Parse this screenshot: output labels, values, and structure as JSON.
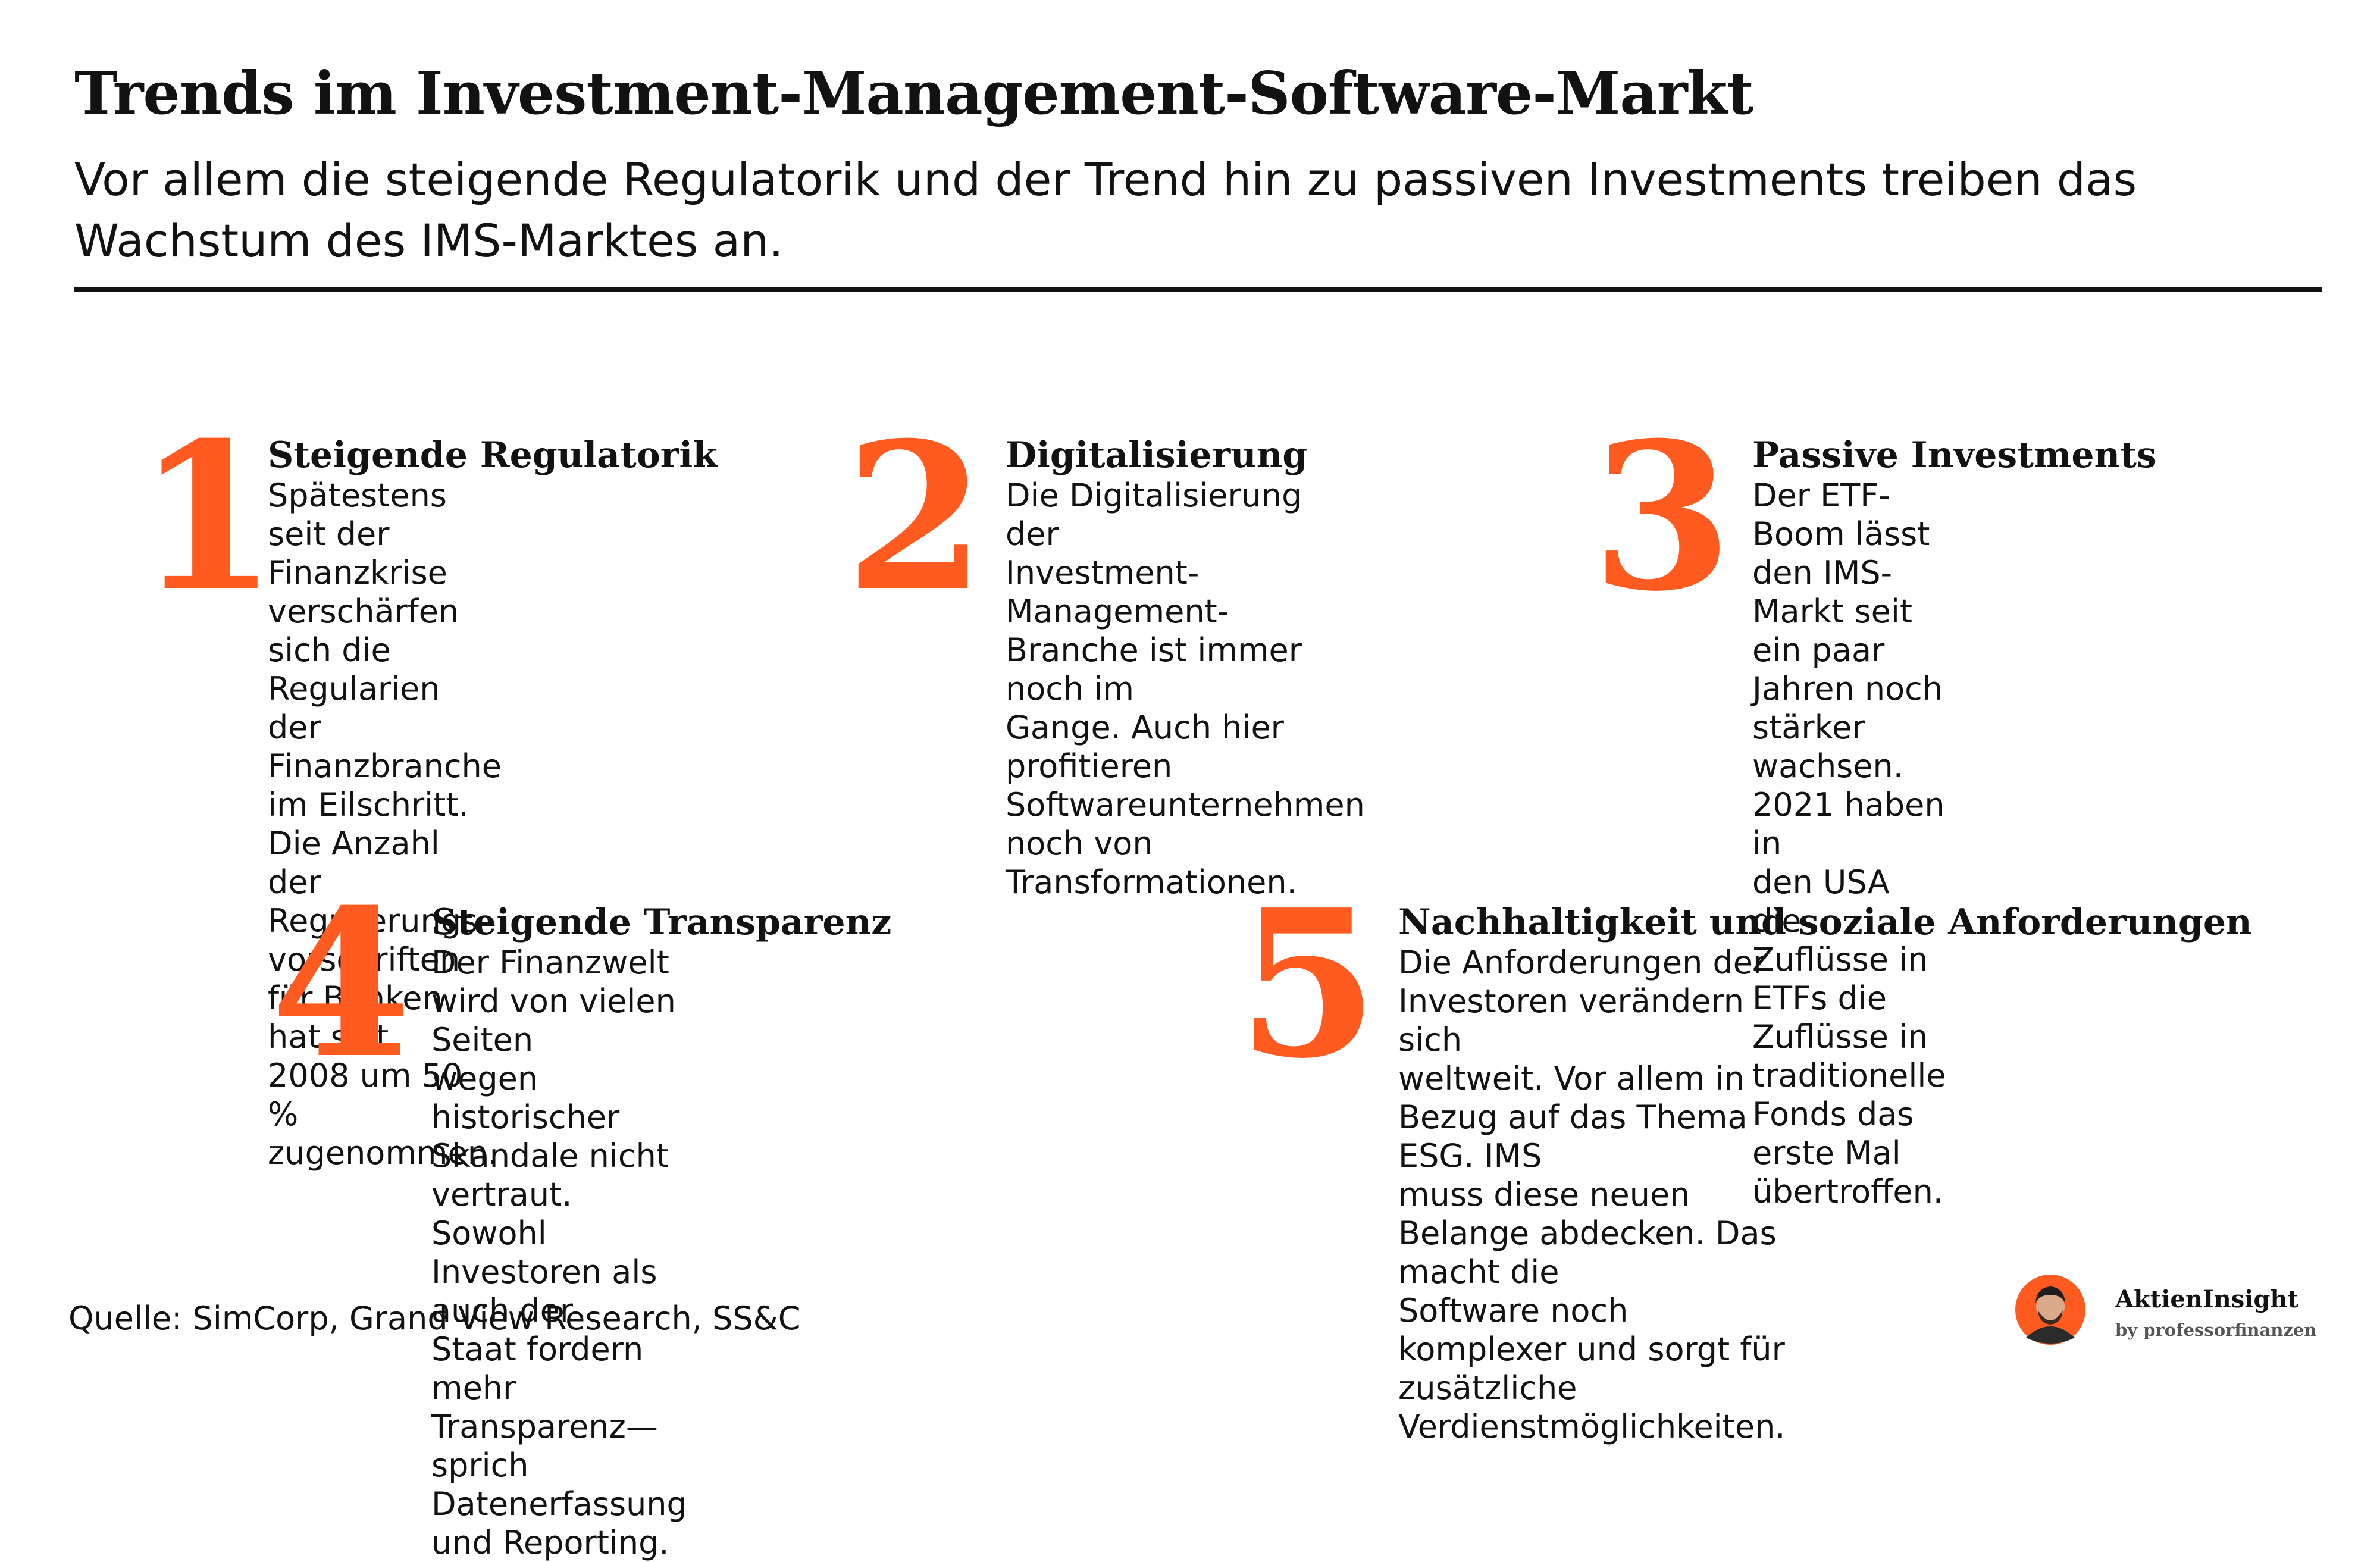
{
  "header": {
    "title": "Trends im Investment-Management-Software-Markt",
    "subtitle": "Vor allem die steigende Regulatorik und der Trend hin zu passiven Investments treiben das Wachstum des IMS-Marktes an."
  },
  "trends": [
    {
      "number": "1",
      "title": "Steigende Regulatorik",
      "lines": [
        "Spätestens seit der Finanzkrise",
        "verschärfen sich die Regularien",
        "der Finanzbranche im Eilschritt.",
        "Die Anzahl der Regulierungs-",
        "vorschriften für Banken hat seit",
        "2008 um 50 % zugenommen."
      ]
    },
    {
      "number": "2",
      "title": "Digitalisierung",
      "lines": [
        "Die Digitalisierung der",
        "Investment-Management-",
        "Branche ist immer noch im",
        "Gange. Auch hier profitieren",
        "Softwareunternehmen noch von",
        "Transformationen."
      ]
    },
    {
      "number": "3",
      "title": "Passive Investments",
      "lines": [
        "Der ETF-Boom lässt den IMS-",
        "Markt seit ein paar Jahren noch",
        "stärker wachsen. 2021 haben in",
        "den USA die Zuflüsse in ETFs die",
        "Zuflüsse in traditionelle Fonds das",
        "erste Mal übertroffen."
      ]
    },
    {
      "number": "4",
      "title": "Steigende Transparenz",
      "lines": [
        "Der Finanzwelt wird von vielen Seiten",
        "wegen historischer Skandale nicht",
        "vertraut. Sowohl Investoren als auch der",
        "Staat fordern mehr Transparenz— sprich",
        "Datenerfassung und Reporting."
      ]
    },
    {
      "number": "5",
      "title": "Nachhaltigkeit und soziale Anforderungen",
      "lines": [
        "Die Anforderungen der Investoren verändern sich",
        "weltweit. Vor allem in Bezug auf das Thema ESG. IMS",
        "muss diese neuen Belange abdecken. Das macht die",
        "Software noch komplexer und sorgt für zusätzliche",
        "Verdienstmöglichkeiten."
      ]
    }
  ],
  "footer": {
    "source": "Quelle: SimCorp, Grand View Research, SS&C",
    "logo_name": "AktienInsight",
    "logo_by": "by professorfinanzen",
    "avatar_icon": "person-avatar-icon"
  },
  "colors": {
    "accent": "#ff5a1f",
    "text": "#121212",
    "background": "#ffffff"
  }
}
